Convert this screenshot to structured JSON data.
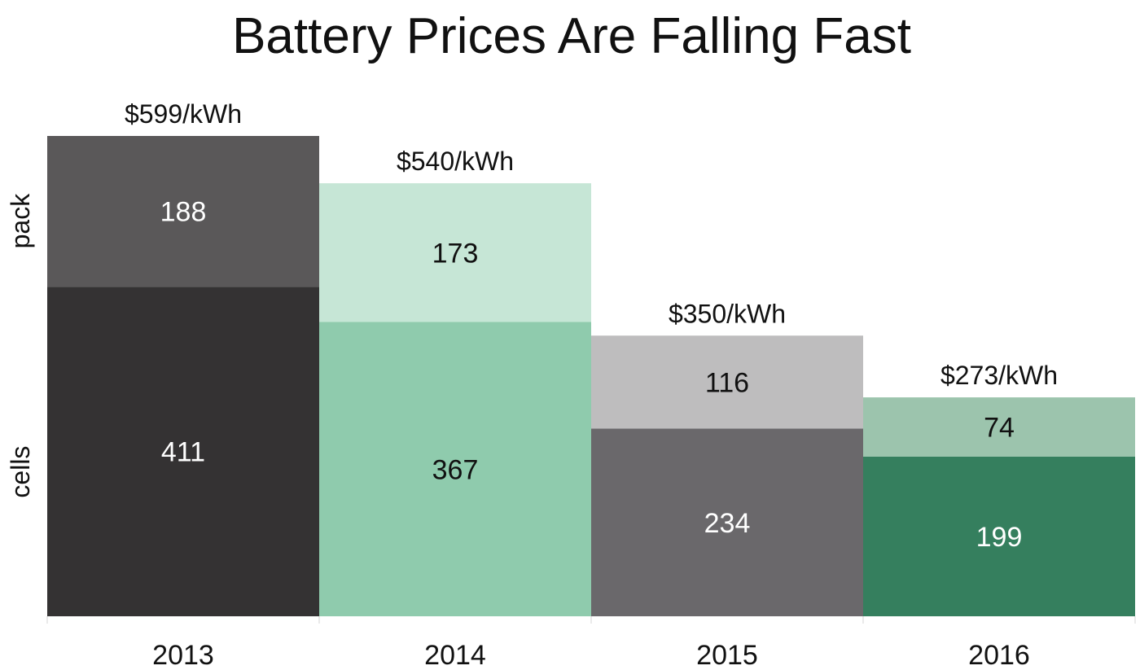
{
  "chart_data": {
    "type": "bar",
    "stacked": true,
    "title": "Battery Prices Are Falling Fast",
    "xlabel": "",
    "ylabel": "",
    "categories": [
      "2013",
      "2014",
      "2015",
      "2016"
    ],
    "series": [
      {
        "name": "cells",
        "values": [
          411,
          367,
          234,
          199
        ]
      },
      {
        "name": "pack",
        "values": [
          188,
          173,
          116,
          74
        ]
      }
    ],
    "totals": [
      "$599/kWh",
      "$540/kWh",
      "$350/kWh",
      "$273/kWh"
    ],
    "ylim": [
      0,
      599
    ],
    "grid": false,
    "legend": "left"
  },
  "colors": {
    "cells": [
      "#343233",
      "#8fcbad",
      "#6a686b",
      "#357f5e"
    ],
    "pack": [
      "#5a5859",
      "#c6e6d6",
      "#bebdbe",
      "#9cc4ad"
    ],
    "cells_text": [
      "#ffffff",
      "#111111",
      "#ffffff",
      "#ffffff"
    ],
    "pack_text": [
      "#ffffff",
      "#111111",
      "#111111",
      "#111111"
    ]
  }
}
